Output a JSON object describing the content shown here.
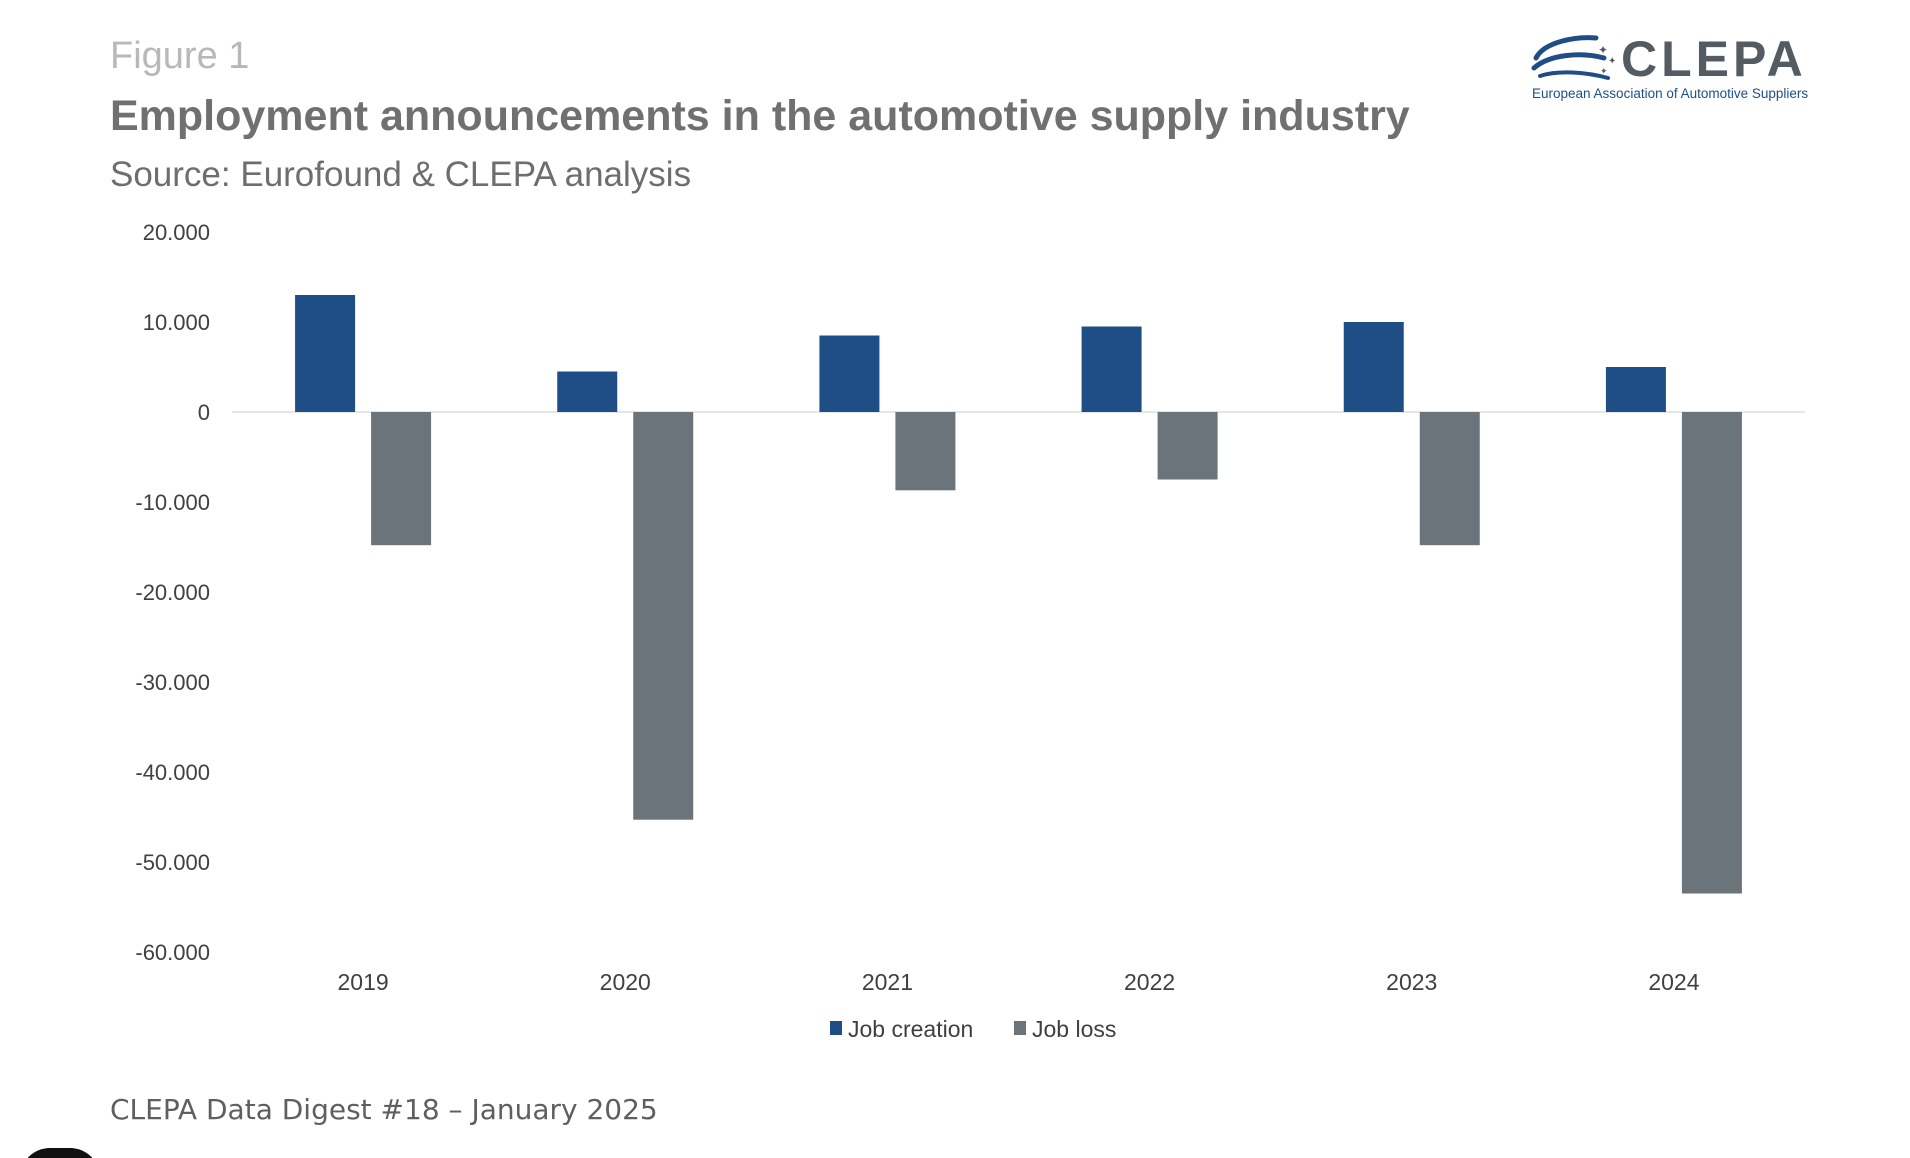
{
  "figure_label": "Figure 1",
  "title": "Employment announcements in the automotive supply industry",
  "subtitle": "Source: Eurofound & CLEPA analysis",
  "footer": "CLEPA Data Digest #18 – January 2025",
  "logo": {
    "name": "CLEPA",
    "tagline": "European Association of Automotive Suppliers",
    "icon": "clepa-swoosh-logo"
  },
  "colors": {
    "job_creation": "#1f4e87",
    "job_loss": "#6b737b",
    "gridline": "#e6e6e6",
    "tick_text": "#404040"
  },
  "chart_data": {
    "type": "bar",
    "title": "",
    "xlabel": "",
    "ylabel": "",
    "categories": [
      "2019",
      "2020",
      "2021",
      "2022",
      "2023",
      "2024"
    ],
    "series": [
      {
        "name": "Job creation",
        "values": [
          13000,
          4500,
          8500,
          9500,
          10000,
          5000
        ]
      },
      {
        "name": "Job loss",
        "values": [
          -14800,
          -45300,
          -8700,
          -7500,
          -14800,
          -53500
        ]
      }
    ],
    "ylim": [
      -60000,
      20000
    ],
    "yticks": [
      20000,
      10000,
      0,
      -10000,
      -20000,
      -30000,
      -40000,
      -50000,
      -60000
    ],
    "ytick_labels": [
      "20.000",
      "10.000",
      "0",
      "-10.000",
      "-20.000",
      "-30.000",
      "-40.000",
      "-50.000",
      "-60.000"
    ],
    "grid": false,
    "zero_line": true,
    "legend_position": "bottom-center"
  }
}
